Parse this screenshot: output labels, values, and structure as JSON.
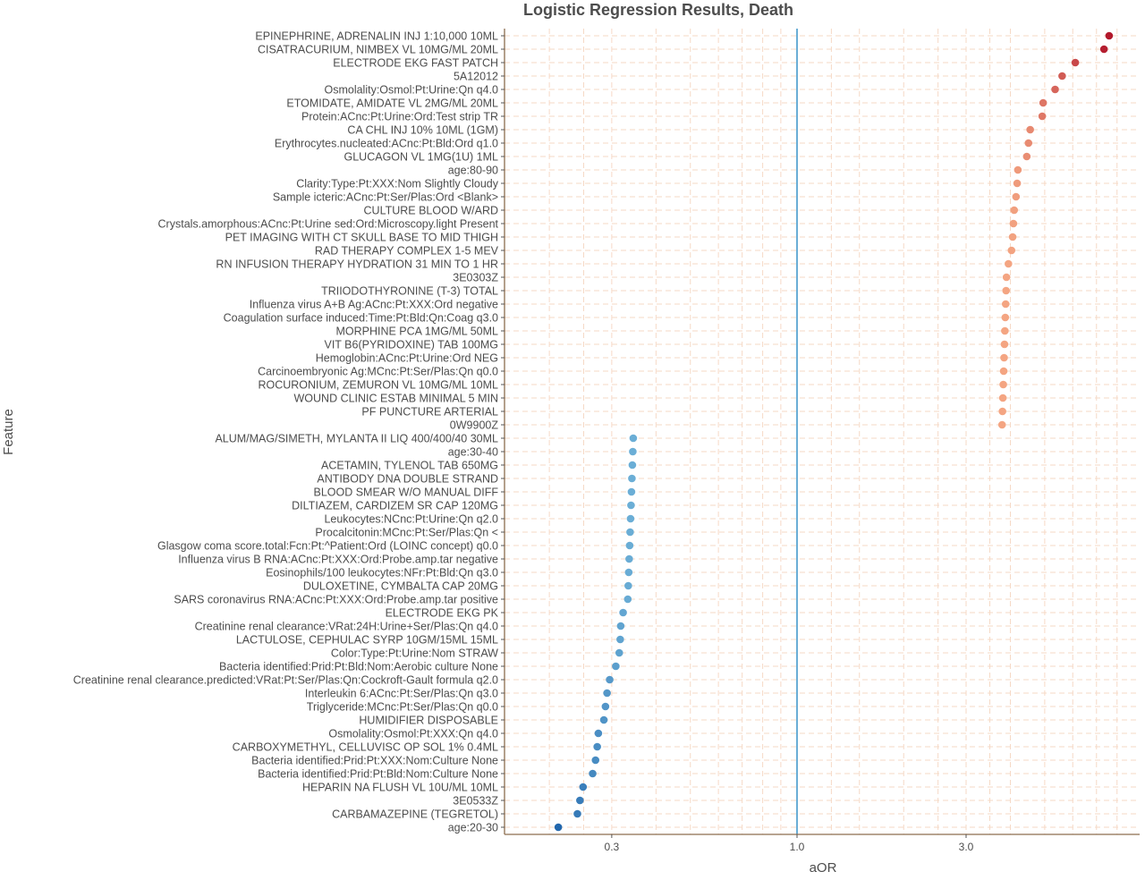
{
  "chart_data": {
    "type": "scatter",
    "title": "Logistic Regression Results, Death",
    "xlabel": "aOR",
    "ylabel": "Feature",
    "x_scale": "log10",
    "xlim": [
      0.19,
      8.0
    ],
    "x_ticks": [
      0.3,
      1.0,
      3.0
    ],
    "x_tick_labels": [
      "0.3",
      "1.0",
      "3.0"
    ],
    "reference_line": 1.0,
    "reference_line_color": "#6baed6",
    "grid": "dashed, light peach",
    "axis_color": "#8c6d4f",
    "color_scale": {
      "low": "#2166ac",
      "mid_low": "#6baed6",
      "mid_high": "#f4a582",
      "high": "#b2182b"
    },
    "points": [
      {
        "feature": "EPINEPHRINE, ADRENALIN INJ 1:10,000 10ML",
        "aor": 7.6
      },
      {
        "feature": "CISATRACURIUM, NIMBEX VL 10MG/ML 20ML",
        "aor": 7.35
      },
      {
        "feature": "ELECTRODE EKG FAST PATCH",
        "aor": 6.1
      },
      {
        "feature": "5A12012",
        "aor": 5.6
      },
      {
        "feature": "Osmolality:Osmol:Pt:Urine:Qn q4.0",
        "aor": 5.35
      },
      {
        "feature": "ETOMIDATE, AMIDATE VL 2MG/ML 20ML",
        "aor": 4.95
      },
      {
        "feature": "Protein:ACnc:Pt:Urine:Ord:Test strip TR",
        "aor": 4.92
      },
      {
        "feature": "CA CHL INJ 10% 10ML (1GM)",
        "aor": 4.55
      },
      {
        "feature": "Erythrocytes.nucleated:ACnc:Pt:Bld:Ord q1.0",
        "aor": 4.5
      },
      {
        "feature": "GLUCAGON VL 1MG(1U) 1ML",
        "aor": 4.45
      },
      {
        "feature": "age:80-90",
        "aor": 4.2
      },
      {
        "feature": "Clarity:Type:Pt:XXX:Nom Slightly Cloudy",
        "aor": 4.18
      },
      {
        "feature": "Sample icteric:ACnc:Pt:Ser/Plas:Ord <Blank>",
        "aor": 4.15
      },
      {
        "feature": "CULTURE BLOOD W/ARD",
        "aor": 4.1
      },
      {
        "feature": "Crystals.amorphous:ACnc:Pt:Urine sed:Ord:Microscopy.light Present",
        "aor": 4.08
      },
      {
        "feature": "PET IMAGING WITH CT SKULL BASE TO MID THIGH",
        "aor": 4.06
      },
      {
        "feature": "RAD THERAPY COMPLEX 1-5 MEV",
        "aor": 4.03
      },
      {
        "feature": "RN INFUSION THERAPY HYDRATION 31 MIN TO 1 HR",
        "aor": 3.95
      },
      {
        "feature": "3E0303Z",
        "aor": 3.9
      },
      {
        "feature": "TRIIODOTHYRONINE (T-3) TOTAL",
        "aor": 3.89
      },
      {
        "feature": "Influenza virus A+B Ag:ACnc:Pt:XXX:Ord negative",
        "aor": 3.88
      },
      {
        "feature": "Coagulation surface induced:Time:Pt:Bld:Qn:Coag q3.0",
        "aor": 3.87
      },
      {
        "feature": "MORPHINE PCA 1MG/ML 50ML",
        "aor": 3.86
      },
      {
        "feature": "VIT B6(PYRIDOXINE) TAB 100MG",
        "aor": 3.85
      },
      {
        "feature": "Hemoglobin:ACnc:Pt:Urine:Ord NEG",
        "aor": 3.84
      },
      {
        "feature": "Carcinoembryonic Ag:MCnc:Pt:Ser/Plas:Qn q0.0",
        "aor": 3.83
      },
      {
        "feature": "ROCURONIUM, ZEMURON VL 10MG/ML 10ML",
        "aor": 3.82
      },
      {
        "feature": "WOUND CLINIC ESTAB MINIMAL 5 MIN",
        "aor": 3.81
      },
      {
        "feature": "PF PUNCTURE ARTERIAL",
        "aor": 3.8
      },
      {
        "feature": "0W9900Z",
        "aor": 3.79
      },
      {
        "feature": "ALUM/MAG/SIMETH, MYLANTA II LIQ 400/400/40 30ML",
        "aor": 0.345
      },
      {
        "feature": "age:30-40",
        "aor": 0.344
      },
      {
        "feature": "ACETAMIN, TYLENOL TAB 650MG",
        "aor": 0.343
      },
      {
        "feature": "ANTIBODY DNA DOUBLE STRAND",
        "aor": 0.342
      },
      {
        "feature": "BLOOD SMEAR W/O MANUAL DIFF",
        "aor": 0.341
      },
      {
        "feature": "DILTIAZEM, CARDIZEM SR CAP 120MG",
        "aor": 0.34
      },
      {
        "feature": "Leukocytes:NCnc:Pt:Urine:Qn q2.0",
        "aor": 0.339
      },
      {
        "feature": "Procalcitonin:MCnc:Pt:Ser/Plas:Qn <",
        "aor": 0.338
      },
      {
        "feature": "Glasgow coma score.total:Fcn:Pt:^Patient:Ord (LOINC concept) q0.0",
        "aor": 0.337
      },
      {
        "feature": "Influenza virus B RNA:ACnc:Pt:XXX:Ord:Probe.amp.tar negative",
        "aor": 0.336
      },
      {
        "feature": "Eosinophils/100 leukocytes:NFr:Pt:Bld:Qn q3.0",
        "aor": 0.335
      },
      {
        "feature": "DULOXETINE, CYMBALTA CAP 20MG",
        "aor": 0.334
      },
      {
        "feature": "SARS coronavirus RNA:ACnc:Pt:XXX:Ord:Probe.amp.tar positive",
        "aor": 0.333
      },
      {
        "feature": "ELECTRODE EKG PK",
        "aor": 0.323
      },
      {
        "feature": "Creatinine renal clearance:VRat:24H:Urine+Ser/Plas:Qn q4.0",
        "aor": 0.318
      },
      {
        "feature": "LACTULOSE, CEPHULAC SYRP 10GM/15ML 15ML",
        "aor": 0.317
      },
      {
        "feature": "Color:Type:Pt:Urine:Nom STRAW",
        "aor": 0.315
      },
      {
        "feature": "Bacteria identified:Prid:Pt:Bld:Nom:Aerobic culture None",
        "aor": 0.308
      },
      {
        "feature": "Creatinine renal clearance.predicted:VRat:Pt:Ser/Plas:Qn:Cockroft-Gault formula q2.0",
        "aor": 0.296
      },
      {
        "feature": "Interleukin 6:ACnc:Pt:Ser/Plas:Qn q3.0",
        "aor": 0.291
      },
      {
        "feature": "Triglyceride:MCnc:Pt:Ser/Plas:Qn q0.0",
        "aor": 0.288
      },
      {
        "feature": "HUMIDIFIER DISPOSABLE",
        "aor": 0.285
      },
      {
        "feature": "Osmolality:Osmol:Pt:XXX:Qn q4.0",
        "aor": 0.275
      },
      {
        "feature": "CARBOXYMETHYL, CELLUVISC OP SOL 1% 0.4ML",
        "aor": 0.273
      },
      {
        "feature": "Bacteria identified:Prid:Pt:XXX:Nom:Culture None",
        "aor": 0.27
      },
      {
        "feature": "Bacteria identified:Prid:Pt:Bld:Nom:Culture None",
        "aor": 0.265
      },
      {
        "feature": "HEPARIN NA FLUSH VL 10U/ML 10ML",
        "aor": 0.249
      },
      {
        "feature": "3E0533Z",
        "aor": 0.244
      },
      {
        "feature": "CARBAMAZEPINE (TEGRETOL)",
        "aor": 0.24
      },
      {
        "feature": "age:20-30",
        "aor": 0.212
      }
    ]
  }
}
